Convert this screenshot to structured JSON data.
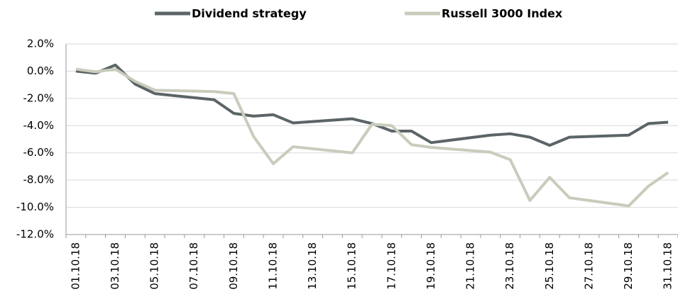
{
  "chart_data": {
    "type": "line",
    "x": [
      "01.10.18",
      "02.10.18",
      "03.10.18",
      "04.10.18",
      "05.10.18",
      "08.10.18",
      "09.10.18",
      "10.10.18",
      "11.10.18",
      "12.10.18",
      "15.10.18",
      "16.10.18",
      "17.10.18",
      "18.10.18",
      "19.10.18",
      "22.10.18",
      "23.10.18",
      "24.10.18",
      "25.10.18",
      "26.10.18",
      "29.10.18",
      "30.10.18",
      "31.10.18"
    ],
    "xlim": [
      "01.10.18",
      "31.10.18"
    ],
    "xticks": [
      "01.10.18",
      "03.10.18",
      "05.10.18",
      "07.10.18",
      "09.10.18",
      "11.10.18",
      "13.10.18",
      "15.10.18",
      "17.10.18",
      "19.10.18",
      "21.10.18",
      "23.10.18",
      "25.10.18",
      "27.10.18",
      "29.10.18",
      "31.10.18"
    ],
    "series": [
      {
        "name": "Dividend strategy",
        "color": "#5b6467",
        "values": [
          0.0,
          -0.15,
          0.45,
          -0.95,
          -1.65,
          -2.1,
          -3.1,
          -3.3,
          -3.2,
          -3.8,
          -3.5,
          -3.85,
          -4.4,
          -4.4,
          -5.25,
          -4.7,
          -4.6,
          -4.85,
          -5.45,
          -4.85,
          -4.7,
          -3.85,
          -3.75
        ]
      },
      {
        "name": "Russell 3000 Index",
        "color": "#c9ccbb",
        "values": [
          0.15,
          -0.05,
          0.15,
          -0.75,
          -1.4,
          -1.5,
          -1.65,
          -4.8,
          -6.8,
          -5.55,
          -6.0,
          -3.9,
          -4.0,
          -5.4,
          -5.6,
          -5.95,
          -6.5,
          -9.5,
          -7.8,
          -9.3,
          -9.9,
          -8.45,
          -7.45
        ]
      }
    ],
    "ylim": [
      -12,
      2
    ],
    "yticks": [
      {
        "value": -12,
        "label": "-12.0%"
      },
      {
        "value": -10,
        "label": "-10.0%"
      },
      {
        "value": -8,
        "label": "-8.0%"
      },
      {
        "value": -6,
        "label": "-6.0%"
      },
      {
        "value": -4,
        "label": "-4.0%"
      },
      {
        "value": -2,
        "label": "-2.0%"
      },
      {
        "value": 0,
        "label": "0.0%"
      },
      {
        "value": 2,
        "label": "2.0%"
      }
    ],
    "grid": true,
    "legend": "top"
  }
}
